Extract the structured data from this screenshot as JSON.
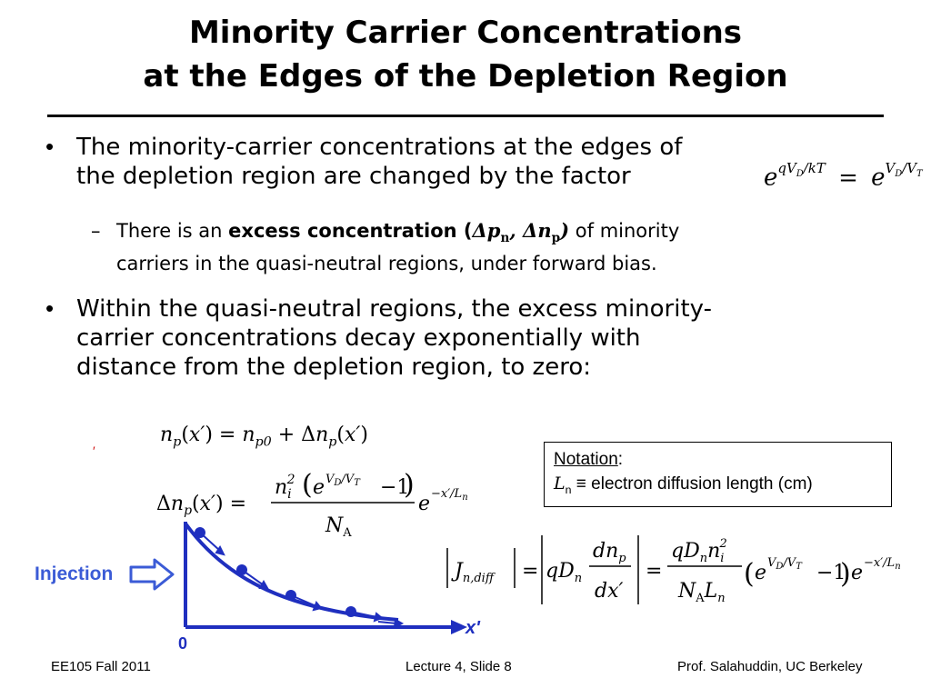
{
  "title": {
    "line1": "Minority Carrier Concentrations",
    "line2": "at the Edges of the Depletion Region"
  },
  "bullets": [
    {
      "line1": "The minority-carrier concentrations at the edges of",
      "line2": "the depletion region are changed by the factor"
    },
    {
      "line1": "Within the quasi-neutral regions, the excess minority-",
      "line2": "carrier concentrations decay exponentially with",
      "line3": "distance from the depletion region, to zero:"
    }
  ],
  "sub_bullet": {
    "prefix": "There is an",
    "bold": "excess concentration (",
    "suffix": "of minority",
    "line2": "carriers in the quasi-neutral regions, under forward bias."
  },
  "notation": {
    "heading": "Notation",
    "text": "electron diffusion length (cm)"
  },
  "diagram": {
    "injection_label": "Injection",
    "axis_label": "x'",
    "origin_label": "0"
  },
  "footer": {
    "left": "EE105 Fall 2011",
    "center": "Lecture 4, Slide 8",
    "right": "Prof. Salahuddin, UC Berkeley"
  },
  "colors": {
    "diagram_blue": "#1f2fbf",
    "injection_blue": "#3b5bd6",
    "stray_mark": "#cc0000"
  }
}
